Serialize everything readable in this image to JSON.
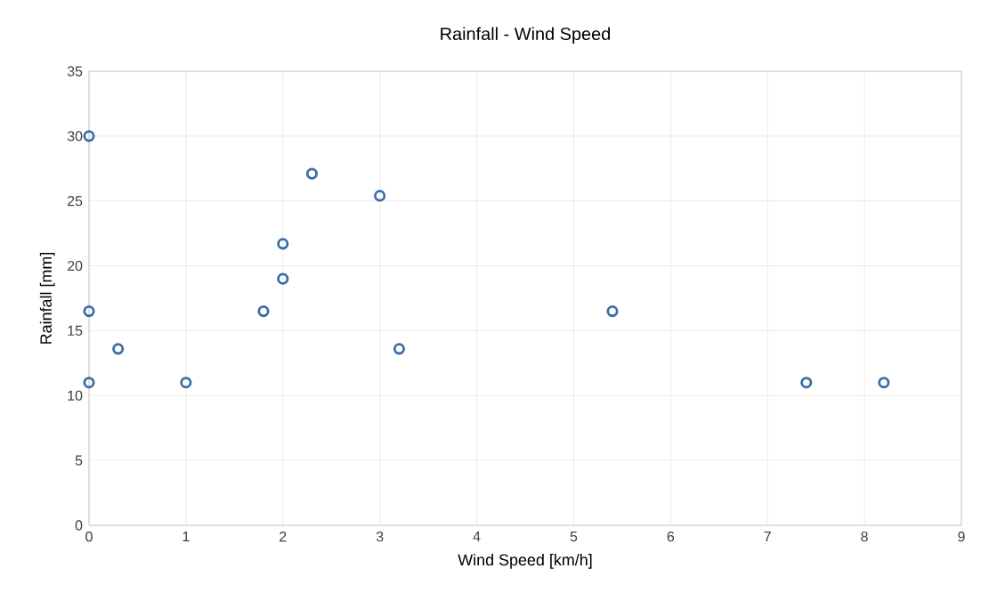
{
  "chart_data": {
    "type": "scatter",
    "title": "Rainfall - Wind Speed",
    "xlabel": "Wind Speed [km/h]",
    "ylabel": "Rainfall [mm]",
    "x": [
      0,
      0,
      0,
      0.3,
      1,
      1.8,
      2,
      2,
      2.3,
      3,
      3.2,
      5.4,
      7.4,
      8.2
    ],
    "values": [
      30,
      16.5,
      11,
      13.6,
      11,
      16.5,
      19,
      21.7,
      27.1,
      25.4,
      13.6,
      16.5,
      11,
      11
    ],
    "color": "#3a6ea5",
    "marker": "circle",
    "grid": true,
    "xlim": [
      0,
      9
    ],
    "xticks": [
      0,
      1,
      2,
      3,
      4,
      5,
      6,
      7,
      8,
      9
    ],
    "ylim": [
      0,
      35
    ],
    "yticks": [
      0,
      5,
      10,
      15,
      20,
      25,
      30,
      35
    ]
  }
}
